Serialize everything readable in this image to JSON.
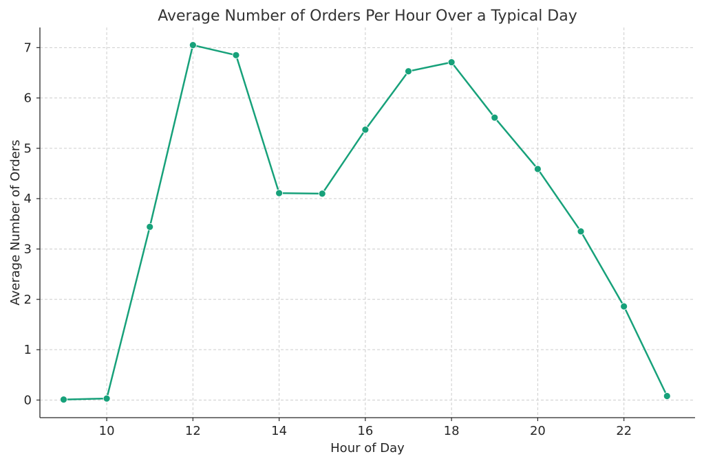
{
  "chart_data": {
    "type": "line",
    "title": "Average Number of Orders Per Hour Over a Typical Day",
    "xlabel": "Hour of Day",
    "ylabel": "Average Number of Orders",
    "xlim": [
      8.45,
      23.65
    ],
    "ylim": [
      -0.35,
      7.4
    ],
    "xticks": [
      10,
      12,
      14,
      16,
      18,
      20,
      22
    ],
    "yticks": [
      0,
      1,
      2,
      3,
      4,
      5,
      6,
      7
    ],
    "grid": true,
    "legend": "none",
    "series": [
      {
        "color": "#17a17a",
        "marker": "circle",
        "x": [
          9,
          10,
          11,
          12,
          13,
          14,
          15,
          16,
          17,
          18,
          19,
          20,
          21,
          22,
          23
        ],
        "y": [
          0.01,
          0.03,
          3.44,
          7.05,
          6.85,
          4.11,
          4.1,
          5.37,
          6.53,
          6.71,
          5.61,
          4.59,
          3.35,
          1.86,
          0.08
        ]
      }
    ]
  }
}
